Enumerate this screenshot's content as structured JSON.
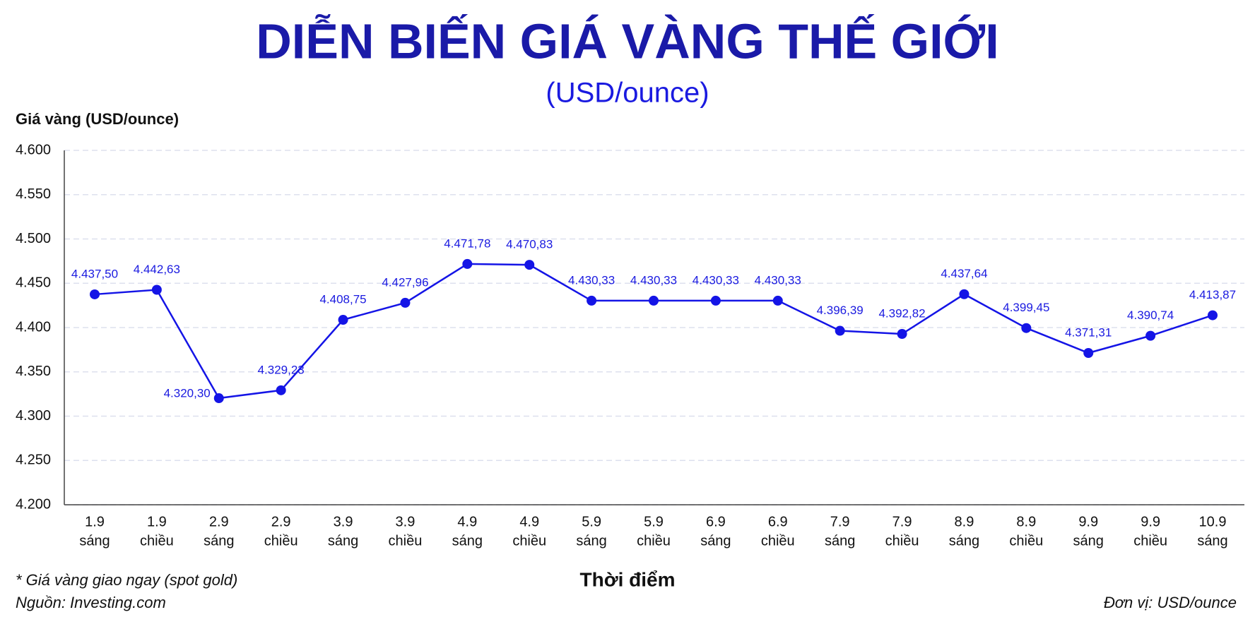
{
  "chart_data": {
    "type": "line",
    "title": "DIỄN BIẾN GIÁ VÀNG THẾ GIỚI",
    "subtitle": "(USD/ounce)",
    "y_label": "Giá vàng (USD/ounce)",
    "x_label": "Thời điểm",
    "note": "* Giá vàng giao ngay (spot gold)",
    "source": "Nguồn: Investing.com",
    "unit": "Đơn vị: USD/ounce",
    "categories": [
      [
        "1.9",
        "sáng"
      ],
      [
        "1.9",
        "chiều"
      ],
      [
        "2.9",
        "sáng"
      ],
      [
        "2.9",
        "chiều"
      ],
      [
        "3.9",
        "sáng"
      ],
      [
        "3.9",
        "chiều"
      ],
      [
        "4.9",
        "sáng"
      ],
      [
        "4.9",
        "chiều"
      ],
      [
        "5.9",
        "sáng"
      ],
      [
        "5.9",
        "chiều"
      ],
      [
        "6.9",
        "sáng"
      ],
      [
        "6.9",
        "chiều"
      ],
      [
        "7.9",
        "sáng"
      ],
      [
        "7.9",
        "chiều"
      ],
      [
        "8.9",
        "sáng"
      ],
      [
        "8.9",
        "chiều"
      ],
      [
        "9.9",
        "sáng"
      ],
      [
        "9.9",
        "chiều"
      ],
      [
        "10.9",
        "sáng"
      ]
    ],
    "series": [
      {
        "color": "#1414e6",
        "values": [
          4437.5,
          4442.63,
          4320.3,
          4329.23,
          4408.75,
          4427.96,
          4471.78,
          4470.83,
          4430.33,
          4430.33,
          4430.33,
          4430.33,
          4396.39,
          4392.82,
          4437.64,
          4399.45,
          4371.31,
          4390.74,
          4413.87
        ],
        "value_labels": [
          "4.437,50",
          "4.442,63",
          "4.320,30",
          "4.329,23",
          "4.408,75",
          "4.427,96",
          "4.471,78",
          "4.470,83",
          "4.430,33",
          "4.430,33",
          "4.430,33",
          "4.430,33",
          "4.396,39",
          "4.392,82",
          "4.437,64",
          "4.399,45",
          "4.371,31",
          "4.390,74",
          "4.413,87"
        ]
      }
    ],
    "ylim": [
      4200,
      4600
    ],
    "yticks": [
      {
        "value": 4200,
        "label": "4.200"
      },
      {
        "value": 4250,
        "label": "4.250"
      },
      {
        "value": 4300,
        "label": "4.300"
      },
      {
        "value": 4350,
        "label": "4.350"
      },
      {
        "value": 4400,
        "label": "4.400"
      },
      {
        "value": 4450,
        "label": "4.450"
      },
      {
        "value": 4500,
        "label": "4.500"
      },
      {
        "value": 4550,
        "label": "4.550"
      },
      {
        "value": 4600,
        "label": "4.600"
      }
    ],
    "grid": true
  }
}
